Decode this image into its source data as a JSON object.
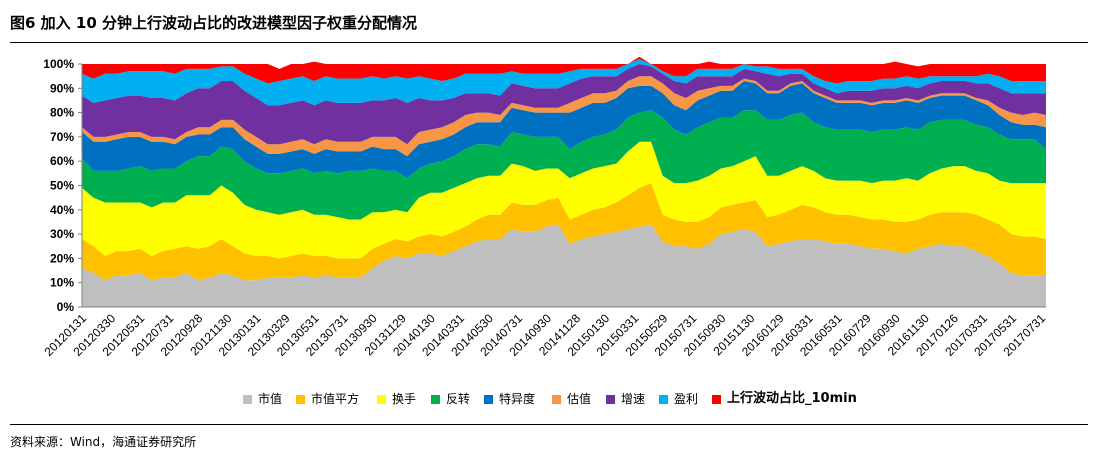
{
  "header": {
    "title": "图6   加入 10 分钟上行波动占比的改进模型因子权重分配情况"
  },
  "footer": {
    "source": "资料来源：Wind，海通证券研究所"
  },
  "chart_data": {
    "type": "area",
    "stacked": true,
    "ylim": [
      0,
      100
    ],
    "y_tick_labels": [
      "0%",
      "10%",
      "20%",
      "30%",
      "40%",
      "50%",
      "60%",
      "70%",
      "80%",
      "90%",
      "100%"
    ],
    "x_tick_labels": [
      "20120131",
      "20120330",
      "20120531",
      "20120731",
      "20120928",
      "20121130",
      "20130131",
      "20130329",
      "20130531",
      "20130731",
      "20130930",
      "20131129",
      "20140130",
      "20140331",
      "20140530",
      "20140731",
      "20140930",
      "20141128",
      "20150130",
      "20150331",
      "20150529",
      "20150731",
      "20150930",
      "20151130",
      "20160129",
      "20160331",
      "20160531",
      "20160729",
      "20160930",
      "20161130",
      "20170126",
      "20170331",
      "20170531",
      "20170731"
    ],
    "grid": false,
    "legend_position": "bottom",
    "series": [
      {
        "name": "市值",
        "color": "#BFBFBF",
        "values": [
          16,
          14,
          11,
          13,
          13,
          14,
          11,
          12,
          12,
          14,
          11,
          12,
          14,
          13,
          11,
          11,
          12,
          12,
          12,
          13,
          12,
          13,
          12,
          12,
          12,
          16,
          19,
          21,
          20,
          22,
          22,
          21,
          23,
          25,
          27,
          28,
          28,
          32,
          31,
          31,
          33,
          34,
          26,
          28,
          29,
          30,
          31,
          32,
          33,
          34,
          27,
          25,
          25,
          24,
          26,
          30,
          31,
          32,
          31,
          25,
          26,
          27,
          28,
          28,
          27,
          26,
          26,
          25,
          24,
          24,
          23,
          22,
          24,
          25,
          26,
          25,
          25,
          23,
          21,
          18,
          14,
          13,
          13,
          13
        ]
      },
      {
        "name": "市值平方",
        "color": "#FFC000",
        "values": [
          12,
          11,
          10,
          10,
          10,
          10,
          10,
          11,
          12,
          11,
          13,
          13,
          14,
          12,
          11,
          10,
          9,
          8,
          9,
          9,
          9,
          8,
          8,
          8,
          8,
          8,
          7,
          7,
          7,
          7,
          8,
          8,
          8,
          8,
          9,
          10,
          10,
          11,
          11,
          11,
          11,
          11,
          10,
          10,
          11,
          11,
          12,
          14,
          16,
          17,
          11,
          11,
          10,
          11,
          11,
          11,
          11,
          11,
          13,
          12,
          12,
          13,
          14,
          13,
          12,
          12,
          12,
          12,
          12,
          12,
          12,
          13,
          12,
          13,
          13,
          14,
          14,
          15,
          15,
          16,
          16,
          16,
          16,
          15
        ]
      },
      {
        "name": "换手",
        "color": "#FFFF00",
        "values": [
          21,
          20,
          22,
          20,
          20,
          19,
          20,
          20,
          19,
          21,
          22,
          21,
          22,
          22,
          20,
          19,
          18,
          18,
          18,
          18,
          17,
          17,
          17,
          16,
          16,
          15,
          13,
          12,
          12,
          16,
          17,
          18,
          18,
          18,
          17,
          16,
          16,
          16,
          16,
          14,
          13,
          12,
          17,
          17,
          17,
          17,
          16,
          18,
          19,
          17,
          16,
          15,
          16,
          17,
          17,
          16,
          16,
          17,
          18,
          17,
          16,
          16,
          16,
          15,
          14,
          14,
          14,
          15,
          15,
          16,
          17,
          18,
          16,
          17,
          18,
          19,
          19,
          18,
          19,
          18,
          21,
          22,
          22,
          23
        ]
      },
      {
        "name": "反转",
        "color": "#00B050",
        "values": [
          12,
          11,
          13,
          13,
          14,
          15,
          15,
          14,
          14,
          14,
          16,
          16,
          16,
          18,
          18,
          17,
          16,
          17,
          17,
          17,
          17,
          18,
          18,
          20,
          20,
          18,
          17,
          16,
          14,
          12,
          12,
          13,
          13,
          14,
          14,
          13,
          12,
          13,
          13,
          14,
          13,
          13,
          12,
          13,
          13,
          13,
          14,
          14,
          12,
          13,
          24,
          22,
          20,
          22,
          22,
          21,
          20,
          21,
          19,
          23,
          23,
          23,
          22,
          20,
          21,
          21,
          21,
          21,
          21,
          21,
          21,
          21,
          21,
          21,
          20,
          19,
          19,
          19,
          19,
          19,
          18,
          18,
          18,
          14
        ]
      },
      {
        "name": "特异度",
        "color": "#0070C0",
        "values": [
          11,
          12,
          12,
          13,
          13,
          12,
          12,
          11,
          10,
          10,
          9,
          9,
          8,
          9,
          9,
          9,
          8,
          8,
          8,
          8,
          8,
          9,
          9,
          8,
          8,
          9,
          9,
          9,
          9,
          10,
          9,
          9,
          9,
          9,
          9,
          9,
          10,
          10,
          10,
          10,
          10,
          10,
          15,
          14,
          14,
          13,
          13,
          12,
          11,
          10,
          10,
          10,
          10,
          11,
          11,
          11,
          11,
          12,
          11,
          11,
          11,
          12,
          12,
          12,
          12,
          11,
          11,
          11,
          11,
          11,
          11,
          11,
          11,
          10,
          10,
          10,
          10,
          10,
          9,
          8,
          7,
          6,
          6,
          9
        ]
      },
      {
        "name": "估值",
        "color": "#F79646",
        "values": [
          2,
          2,
          2,
          2,
          2,
          2,
          2,
          2,
          2,
          2,
          3,
          3,
          3,
          3,
          4,
          4,
          4,
          4,
          4,
          4,
          4,
          4,
          4,
          4,
          4,
          4,
          5,
          5,
          5,
          5,
          5,
          5,
          5,
          5,
          4,
          4,
          3,
          2,
          2,
          2,
          2,
          2,
          4,
          4,
          4,
          4,
          3,
          3,
          4,
          4,
          4,
          5,
          5,
          4,
          3,
          2,
          2,
          1,
          1,
          1,
          1,
          1,
          1,
          1,
          1,
          1,
          1,
          1,
          1,
          1,
          1,
          1,
          1,
          1,
          1,
          1,
          1,
          1,
          2,
          3,
          4,
          4,
          5,
          5
        ]
      },
      {
        "name": "增速",
        "color": "#7030A0",
        "values": [
          13,
          14,
          15,
          15,
          15,
          15,
          16,
          16,
          16,
          16,
          16,
          16,
          16,
          16,
          16,
          16,
          16,
          16,
          16,
          16,
          16,
          16,
          16,
          16,
          16,
          15,
          15,
          16,
          17,
          14,
          12,
          11,
          10,
          9,
          8,
          8,
          8,
          8,
          8,
          8,
          8,
          8,
          8,
          8,
          7,
          7,
          6,
          5,
          5,
          4,
          4,
          5,
          6,
          6,
          5,
          4,
          4,
          4,
          4,
          7,
          6,
          4,
          3,
          3,
          3,
          3,
          4,
          4,
          5,
          5,
          5,
          5,
          5,
          5,
          5,
          5,
          5,
          6,
          7,
          8,
          8,
          9,
          8,
          9
        ]
      },
      {
        "name": "盈利",
        "color": "#00B0F0",
        "values": [
          9,
          10,
          11,
          10,
          10,
          10,
          11,
          11,
          11,
          10,
          8,
          8,
          6,
          6,
          7,
          8,
          9,
          10,
          10,
          10,
          10,
          10,
          10,
          10,
          10,
          10,
          9,
          9,
          10,
          9,
          9,
          8,
          8,
          8,
          8,
          8,
          9,
          5,
          5,
          6,
          6,
          6,
          5,
          4,
          3,
          3,
          3,
          2,
          2,
          1,
          1,
          2,
          3,
          3,
          3,
          3,
          3,
          2,
          2,
          3,
          3,
          2,
          2,
          3,
          3,
          4,
          4,
          4,
          4,
          4,
          4,
          4,
          4,
          3,
          2,
          2,
          2,
          3,
          4,
          5,
          5,
          5,
          5,
          5
        ]
      },
      {
        "name": "上行波动占比_10min",
        "color": "#FF0000",
        "values": [
          4,
          6,
          4,
          4,
          3,
          3,
          3,
          3,
          4,
          2,
          2,
          2,
          1,
          1,
          4,
          6,
          8,
          5,
          6,
          5,
          8,
          5,
          6,
          6,
          6,
          5,
          6,
          5,
          6,
          5,
          6,
          7,
          6,
          4,
          4,
          4,
          4,
          3,
          4,
          4,
          4,
          4,
          3,
          2,
          2,
          2,
          2,
          0,
          1,
          0,
          3,
          5,
          5,
          2,
          3,
          2,
          2,
          0,
          1,
          1,
          2,
          2,
          2,
          5,
          7,
          8,
          7,
          7,
          7,
          6,
          7,
          5,
          5,
          5,
          5,
          5,
          5,
          5,
          4,
          5,
          7,
          7,
          7,
          7
        ]
      }
    ]
  }
}
